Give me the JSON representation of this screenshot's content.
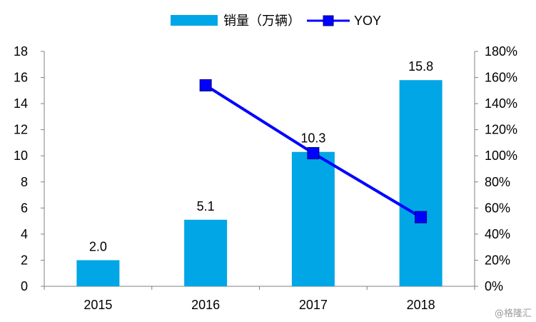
{
  "chart_data": {
    "type": "bar",
    "categories": [
      "2015",
      "2016",
      "2017",
      "2018"
    ],
    "series": [
      {
        "name": "销量（万辆）",
        "type": "bar",
        "axis": "left",
        "color": "#00a6e6",
        "values": [
          2.0,
          5.1,
          10.3,
          15.8
        ],
        "labels": [
          "2.0",
          "5.1",
          "10.3",
          "15.8"
        ]
      },
      {
        "name": "YOY",
        "type": "line",
        "axis": "right",
        "color": "#0000ff",
        "marker": "square",
        "values": [
          null,
          1.54,
          1.02,
          0.53
        ]
      }
    ],
    "y_left": {
      "ylim": [
        0,
        18
      ],
      "ticks": [
        "0",
        "2",
        "4",
        "6",
        "8",
        "10",
        "12",
        "14",
        "16",
        "18"
      ]
    },
    "y_right": {
      "ylim": [
        0,
        1.8
      ],
      "ticks": [
        "0%",
        "20%",
        "40%",
        "60%",
        "80%",
        "100%",
        "120%",
        "140%",
        "160%",
        "180%"
      ]
    },
    "grid": false,
    "legend": "top-center"
  },
  "watermark": "@格隆汇"
}
